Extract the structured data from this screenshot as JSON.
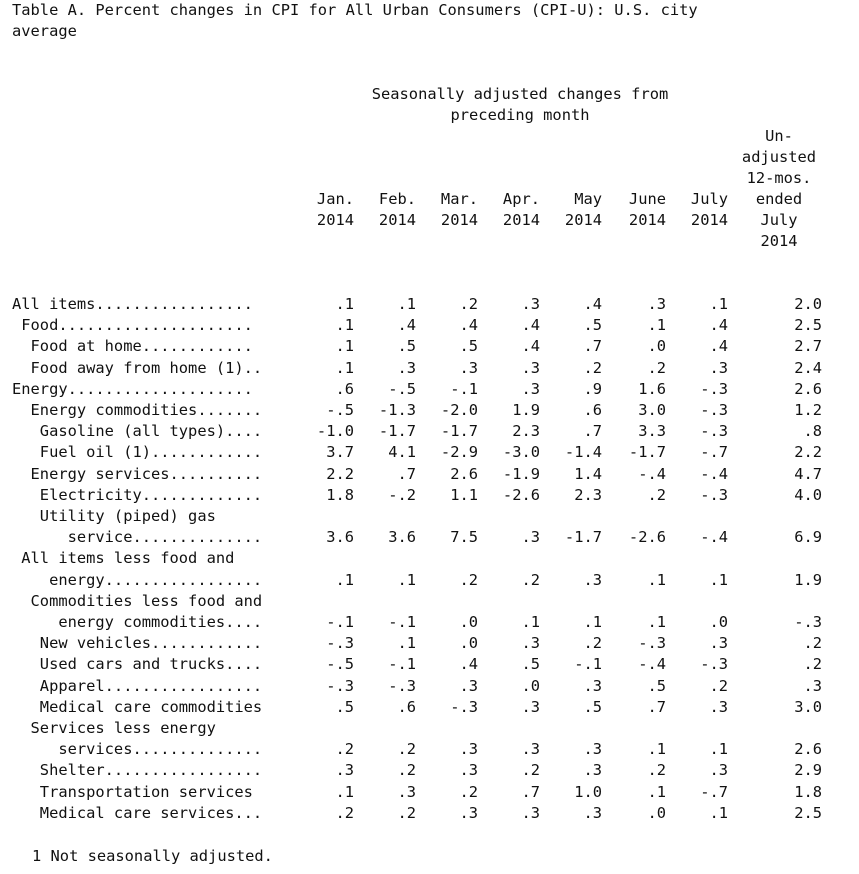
{
  "title": {
    "line1": "Table A. Percent changes in CPI for All Urban Consumers (CPI-U): U.S. city",
    "line2": "average"
  },
  "header": {
    "sa_line1": "Seasonally adjusted changes from",
    "sa_line2": "preceding month",
    "months": [
      {
        "m": "Jan.",
        "y": "2014"
      },
      {
        "m": "Feb.",
        "y": "2014"
      },
      {
        "m": "Mar.",
        "y": "2014"
      },
      {
        "m": "Apr.",
        "y": "2014"
      },
      {
        "m": "May",
        "y": "2014"
      },
      {
        "m": "June",
        "y": "2014"
      },
      {
        "m": "July",
        "y": "2014"
      }
    ],
    "unadjusted": [
      "Un-",
      "adjusted",
      "12-mos.",
      "ended",
      "July",
      "2014"
    ]
  },
  "rows": [
    {
      "label": "All items.................",
      "vals": [
        ".1",
        ".1",
        ".2",
        ".3",
        ".4",
        ".3",
        ".1",
        "2.0"
      ]
    },
    {
      "label": " Food.....................",
      "vals": [
        ".1",
        ".4",
        ".4",
        ".4",
        ".5",
        ".1",
        ".4",
        "2.5"
      ]
    },
    {
      "label": "  Food at home............",
      "vals": [
        ".1",
        ".5",
        ".5",
        ".4",
        ".7",
        ".0",
        ".4",
        "2.7"
      ]
    },
    {
      "label": "  Food away from home (1)..",
      "vals": [
        ".1",
        ".3",
        ".3",
        ".3",
        ".2",
        ".2",
        ".3",
        "2.4"
      ]
    },
    {
      "label": "Energy....................",
      "vals": [
        ".6",
        "-.5",
        "-.1",
        ".3",
        ".9",
        "1.6",
        "-.3",
        "2.6"
      ]
    },
    {
      "label": "  Energy commodities.......",
      "vals": [
        "-.5",
        "-1.3",
        "-2.0",
        "1.9",
        ".6",
        "3.0",
        "-.3",
        "1.2"
      ]
    },
    {
      "label": "   Gasoline (all types)....",
      "vals": [
        "-1.0",
        "-1.7",
        "-1.7",
        "2.3",
        ".7",
        "3.3",
        "-.3",
        ".8"
      ]
    },
    {
      "label": "   Fuel oil (1)............",
      "vals": [
        "3.7",
        "4.1",
        "-2.9",
        "-3.0",
        "-1.4",
        "-1.7",
        "-.7",
        "2.2"
      ]
    },
    {
      "label": "  Energy services..........",
      "vals": [
        "2.2",
        ".7",
        "2.6",
        "-1.9",
        "1.4",
        "-.4",
        "-.4",
        "4.7"
      ]
    },
    {
      "label": "   Electricity.............",
      "vals": [
        "1.8",
        "-.2",
        "1.1",
        "-2.6",
        "2.3",
        ".2",
        "-.3",
        "4.0"
      ]
    },
    {
      "label": "   Utility (piped) gas",
      "vals": [
        "",
        "",
        "",
        "",
        "",
        "",
        "",
        ""
      ]
    },
    {
      "label": "      service..............",
      "vals": [
        "3.6",
        "3.6",
        "7.5",
        ".3",
        "-1.7",
        "-2.6",
        "-.4",
        "6.9"
      ]
    },
    {
      "label": " All items less food and",
      "vals": [
        "",
        "",
        "",
        "",
        "",
        "",
        "",
        ""
      ]
    },
    {
      "label": "    energy.................",
      "vals": [
        ".1",
        ".1",
        ".2",
        ".2",
        ".3",
        ".1",
        ".1",
        "1.9"
      ]
    },
    {
      "label": "  Commodities less food and",
      "vals": [
        "",
        "",
        "",
        "",
        "",
        "",
        "",
        ""
      ]
    },
    {
      "label": "     energy commodities....",
      "vals": [
        "-.1",
        "-.1",
        ".0",
        ".1",
        ".1",
        ".1",
        ".0",
        "-.3"
      ]
    },
    {
      "label": "   New vehicles............",
      "vals": [
        "-.3",
        ".1",
        ".0",
        ".3",
        ".2",
        "-.3",
        ".3",
        ".2"
      ]
    },
    {
      "label": "   Used cars and trucks....",
      "vals": [
        "-.5",
        "-.1",
        ".4",
        ".5",
        "-.1",
        "-.4",
        "-.3",
        ".2"
      ]
    },
    {
      "label": "   Apparel.................",
      "vals": [
        "-.3",
        "-.3",
        ".3",
        ".0",
        ".3",
        ".5",
        ".2",
        ".3"
      ]
    },
    {
      "label": "   Medical care commodities",
      "vals": [
        ".5",
        ".6",
        "-.3",
        ".3",
        ".5",
        ".7",
        ".3",
        "3.0"
      ]
    },
    {
      "label": "  Services less energy",
      "vals": [
        "",
        "",
        "",
        "",
        "",
        "",
        "",
        ""
      ]
    },
    {
      "label": "     services..............",
      "vals": [
        ".2",
        ".2",
        ".3",
        ".3",
        ".3",
        ".1",
        ".1",
        "2.6"
      ]
    },
    {
      "label": "   Shelter.................",
      "vals": [
        ".3",
        ".2",
        ".3",
        ".2",
        ".3",
        ".2",
        ".3",
        "2.9"
      ]
    },
    {
      "label": "   Transportation services",
      "vals": [
        ".1",
        ".3",
        ".2",
        ".7",
        "1.0",
        ".1",
        "-.7",
        "1.8"
      ]
    },
    {
      "label": "   Medical care services...",
      "vals": [
        ".2",
        ".2",
        ".3",
        ".3",
        ".3",
        ".0",
        ".1",
        "2.5"
      ]
    }
  ],
  "footnote": "1 Not seasonally adjusted."
}
